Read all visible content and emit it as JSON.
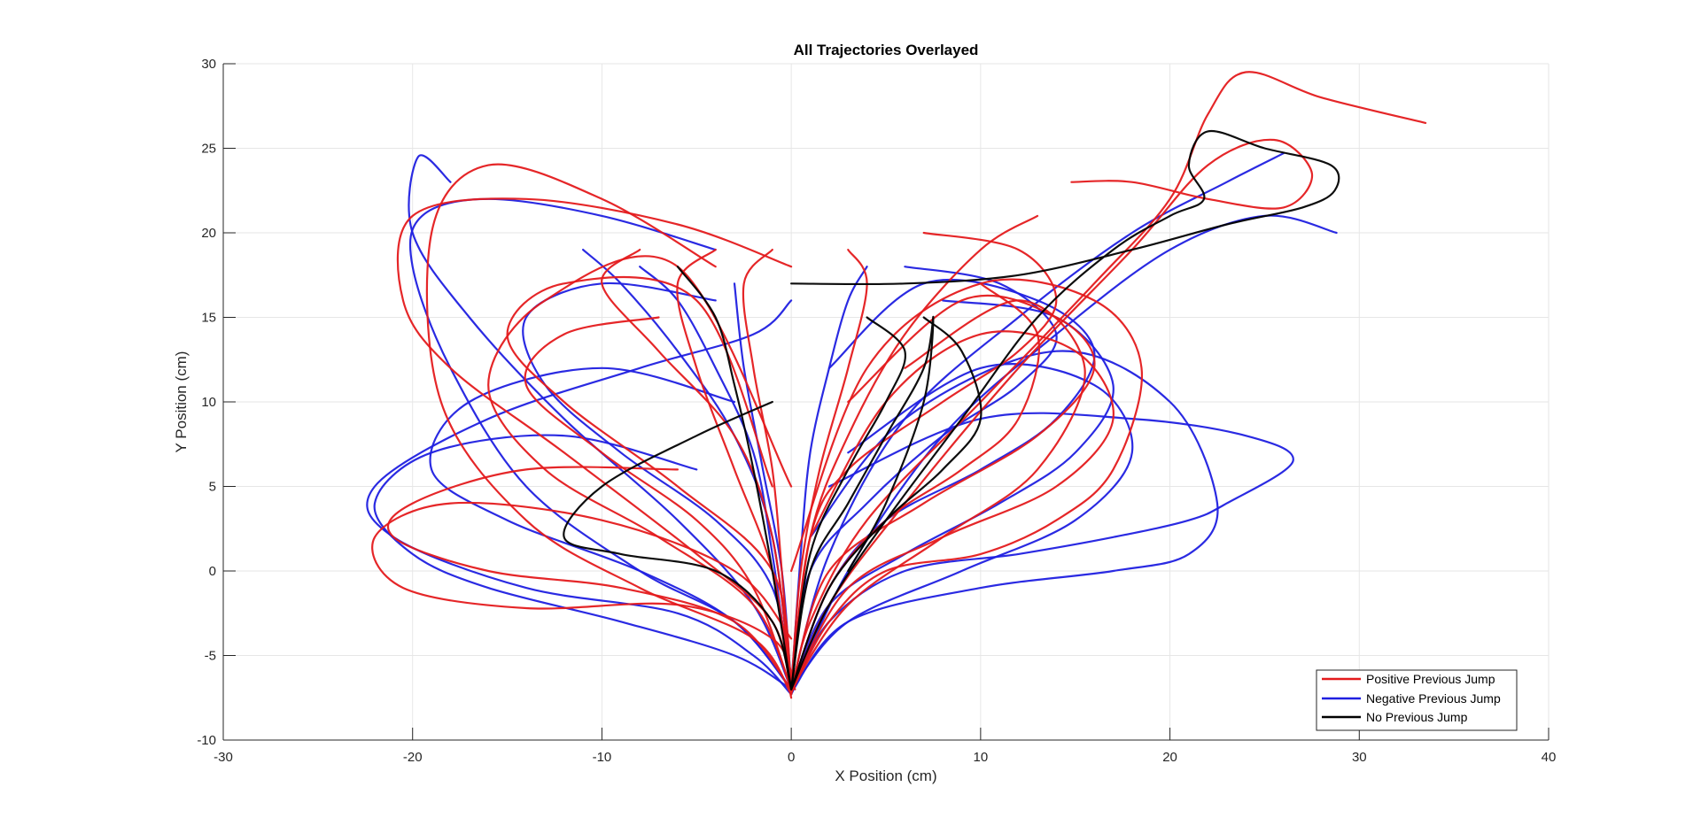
{
  "chart_data": {
    "type": "line",
    "title": "All Trajectories Overlayed",
    "xlabel": "X Position (cm)",
    "ylabel": "Y Position (cm)",
    "xlim": [
      -30,
      40
    ],
    "ylim": [
      -10,
      30
    ],
    "xticks": [
      -30,
      -20,
      -10,
      0,
      10,
      20,
      30,
      40
    ],
    "yticks": [
      -10,
      -5,
      0,
      5,
      10,
      15,
      20,
      25,
      30
    ],
    "xtick_labels": [
      "-30",
      "-20",
      "-10",
      "0",
      "10",
      "20",
      "30",
      "40"
    ],
    "ytick_labels": [
      "-10",
      "-5",
      "0",
      "5",
      "10",
      "15",
      "20",
      "25",
      "30"
    ],
    "grid": true,
    "legend_position": "bottom-right",
    "colors": {
      "positive": "#e41a1c",
      "negative": "#1f1fe0",
      "none": "#000000",
      "grid": "#e6e6e6",
      "axis": "#262626"
    },
    "legend": [
      {
        "label": "Positive Previous Jump",
        "color": "#e41a1c"
      },
      {
        "label": "Negative Previous Jump",
        "color": "#1f1fe0"
      },
      {
        "label": "No Previous Jump",
        "color": "#000000"
      }
    ],
    "series": [
      {
        "name": "Positive Previous Jump",
        "color": "#e41a1c",
        "trajectories": [
          {
            "x": [
              0,
              1,
              4,
              10,
              16,
              20,
              22,
              24,
              28,
              33.5
            ],
            "y": [
              -7.3,
              -3,
              3,
              10,
              17,
              22,
              27,
              29.5,
              28,
              26.5
            ]
          },
          {
            "x": [
              0,
              2,
              6,
              12,
              18,
              22,
              25.5,
              27.5,
              26,
              22,
              18,
              14.8
            ],
            "y": [
              -7.2,
              -2,
              4,
              12,
              19,
              24,
              25.5,
              23.5,
              21.5,
              22,
              23,
              23
            ]
          },
          {
            "x": [
              0,
              -1,
              -5,
              -12,
              -18,
              -20.5,
              -20,
              -14,
              -6,
              0
            ],
            "y": [
              -7.5,
              -3,
              1,
              7,
              12,
              16,
              21,
              22,
              20.5,
              18
            ]
          },
          {
            "x": [
              0,
              -2,
              -8,
              -14,
              -18.5,
              -19,
              -16,
              -10,
              -4
            ],
            "y": [
              -7.3,
              -4,
              -1,
              3,
              10,
              20,
              24,
              22,
              18
            ]
          },
          {
            "x": [
              0.2,
              -1,
              -6,
              -14,
              -20.5,
              -22,
              -18,
              -10,
              -3,
              0
            ],
            "y": [
              -7,
              -4,
              -2,
              -2.2,
              -1,
              2,
              4,
              3,
              0,
              -4
            ]
          },
          {
            "x": [
              0,
              2,
              5,
              10,
              14,
              17,
              18.5,
              16,
              10,
              4,
              0
            ],
            "y": [
              -7.2,
              -3,
              0,
              1,
              3,
              6,
              12,
              16,
              17,
              12,
              0
            ]
          },
          {
            "x": [
              0,
              3,
              8,
              14,
              17,
              15,
              10,
              5,
              1
            ],
            "y": [
              -7,
              -1,
              2,
              5,
              9,
              13,
              14,
              10,
              2
            ]
          },
          {
            "x": [
              0,
              2,
              7,
              13,
              16,
              14,
              9,
              3
            ],
            "y": [
              -7,
              0,
              4,
              8,
              12,
              15,
              16,
              10
            ]
          },
          {
            "x": [
              0,
              -2,
              -7,
              -13,
              -16,
              -13,
              -6,
              0
            ],
            "y": [
              -7,
              -2,
              2,
              6,
              11,
              16,
              18,
              5
            ]
          },
          {
            "x": [
              0,
              -1,
              -6,
              -12,
              -15,
              -12,
              -5,
              -1
            ],
            "y": [
              -7,
              0,
              5,
              10,
              14,
              17,
              16,
              5
            ]
          },
          {
            "x": [
              0,
              1,
              3,
              8,
              12,
              14,
              12,
              7
            ],
            "y": [
              -7,
              2,
              6,
              10,
              13,
              16,
              19,
              20
            ]
          },
          {
            "x": [
              0,
              -1,
              -3,
              -5,
              -6,
              -4
            ],
            "y": [
              -7,
              0,
              6,
              12,
              17,
              19
            ]
          },
          {
            "x": [
              0,
              0.5,
              1.5,
              3,
              4,
              3
            ],
            "y": [
              -7,
              0,
              6,
              12,
              17,
              19
            ]
          },
          {
            "x": [
              0,
              -0.5,
              -1,
              -2,
              -2.5,
              -1
            ],
            "y": [
              -7,
              0,
              6,
              12,
              17,
              19
            ]
          },
          {
            "x": [
              0,
              1,
              3,
              6,
              10,
              13
            ],
            "y": [
              -7,
              2,
              8,
              14,
              19,
              21
            ]
          },
          {
            "x": [
              0,
              -1,
              -3,
              -7,
              -10,
              -8
            ],
            "y": [
              -7,
              2,
              8,
              13,
              17,
              19
            ]
          },
          {
            "x": [
              0,
              -3,
              -9,
              -16,
              -21,
              -20,
              -14,
              -6
            ],
            "y": [
              -7,
              -3,
              -1,
              0,
              2,
              4,
              6,
              6
            ]
          },
          {
            "x": [
              0,
              3,
              8,
              13,
              15.5,
              12,
              6
            ],
            "y": [
              -7,
              -2,
              2,
              6,
              12,
              16,
              12
            ]
          },
          {
            "x": [
              0,
              2,
              5,
              9,
              12,
              13,
              10
            ],
            "y": [
              -7,
              -1,
              3,
              6,
              9,
              14,
              17
            ]
          },
          {
            "x": [
              0,
              -2,
              -5,
              -10,
              -14,
              -12,
              -7
            ],
            "y": [
              -7,
              -1,
              3,
              7,
              11,
              14,
              15
            ]
          }
        ]
      },
      {
        "name": "Negative Previous Jump",
        "color": "#1f1fe0",
        "trajectories": [
          {
            "x": [
              0,
              -2,
              -6,
              -14,
              -21,
              -22,
              -16,
              -8,
              -2,
              0
            ],
            "y": [
              -7.3,
              -5,
              -2.5,
              -1,
              2,
              5,
              9,
              12,
              14,
              16
            ]
          },
          {
            "x": [
              0,
              2,
              6,
              12,
              17,
              21,
              23,
              26.5,
              24,
              18,
              10,
              2
            ],
            "y": [
              -7.3,
              -3,
              0,
              1,
              2,
              3,
              4,
              6.5,
              8,
              9,
              9,
              5
            ]
          },
          {
            "x": [
              0,
              3,
              10,
              17,
              21,
              22.5,
              20,
              14,
              6,
              1
            ],
            "y": [
              -7.2,
              -3,
              -1,
              0,
              1,
              4,
              10,
              13,
              9,
              2
            ]
          },
          {
            "x": [
              0,
              3,
              8,
              14,
              20,
              25,
              28.8
            ],
            "y": [
              -7.2,
              0,
              8,
              14,
              19,
              21,
              20
            ]
          },
          {
            "x": [
              0,
              2,
              6,
              12,
              18,
              23,
              26
            ],
            "y": [
              -7,
              1,
              9,
              15,
              20,
              23,
              24.7
            ]
          },
          {
            "x": [
              0,
              -3,
              -8,
              -14,
              -18,
              -20,
              -19.5,
              -16,
              -10,
              -4
            ],
            "y": [
              -7,
              -3,
              0,
              5,
              12,
              18,
              21,
              22,
              21,
              19
            ]
          },
          {
            "x": [
              0,
              -2,
              -6,
              -12,
              -17,
              -20,
              -19.7,
              -18
            ],
            "y": [
              -7,
              -2,
              3,
              9,
              15,
              20,
              24.5,
              23
            ]
          },
          {
            "x": [
              0,
              -3,
              -9,
              -16,
              -20,
              -22,
              -19,
              -12,
              -5
            ],
            "y": [
              -7,
              -5,
              -3,
              -1,
              1,
              4,
              7,
              8,
              6
            ]
          },
          {
            "x": [
              0,
              2,
              5,
              10,
              14,
              16,
              13,
              7,
              2
            ],
            "y": [
              -7,
              -1,
              3,
              6,
              9,
              13,
              16,
              17,
              12
            ]
          },
          {
            "x": [
              0,
              -1,
              -4,
              -9,
              -13,
              -14,
              -10,
              -4
            ],
            "y": [
              -7,
              -1,
              3,
              7,
              11,
              15,
              17,
              16
            ]
          },
          {
            "x": [
              0,
              1,
              4,
              8,
              12,
              14,
              11,
              6
            ],
            "y": [
              -7,
              0,
              4,
              8,
              11,
              14,
              17,
              18
            ]
          },
          {
            "x": [
              0,
              -1,
              -2,
              -4,
              -6,
              -8
            ],
            "y": [
              -7,
              1,
              7,
              12,
              16,
              18
            ]
          },
          {
            "x": [
              0,
              0.5,
              1,
              2,
              3,
              4
            ],
            "y": [
              -7,
              1,
              7,
              12,
              16,
              18
            ]
          },
          {
            "x": [
              0,
              -0.5,
              -1.5,
              -2.5,
              -3
            ],
            "y": [
              -7,
              0,
              6,
              12,
              17
            ]
          },
          {
            "x": [
              0,
              2,
              6,
              11,
              15,
              17,
              14,
              8
            ],
            "y": [
              -7,
              -2,
              1,
              4,
              7,
              11,
              15,
              16
            ]
          },
          {
            "x": [
              0,
              -3,
              -8,
              -15,
              -19,
              -17,
              -10,
              -3
            ],
            "y": [
              -7,
              -3,
              0,
              3,
              6,
              10,
              12,
              10
            ]
          },
          {
            "x": [
              0,
              3,
              9,
              15,
              18,
              16,
              10,
              3
            ],
            "y": [
              -7,
              -3,
              0,
              3,
              7,
              11,
              12,
              7
            ]
          },
          {
            "x": [
              0,
              -1,
              -3,
              -6,
              -9,
              -11
            ],
            "y": [
              -7,
              2,
              8,
              13,
              17,
              19
            ]
          }
        ]
      },
      {
        "name": "No Previous Jump",
        "color": "#000000",
        "trajectories": [
          {
            "x": [
              0,
              2,
              5,
              9,
              13,
              17,
              20,
              21.8,
              21,
              22,
              25,
              28.5,
              28.7,
              27,
              23,
              18,
              12,
              6,
              0
            ],
            "y": [
              -7,
              -2,
              3,
              9,
              15,
              19,
              21,
              22,
              24,
              26,
              25,
              24,
              22.5,
              21.5,
              20.5,
              19,
              17.5,
              17,
              17
            ]
          },
          {
            "x": [
              0,
              1,
              3,
              5,
              7,
              7.5,
              7,
              5,
              3
            ],
            "y": [
              -7,
              0,
              4,
              8,
              12,
              15,
              10,
              4,
              0
            ]
          },
          {
            "x": [
              0,
              -1,
              -4,
              -9,
              -12,
              -10,
              -5,
              -1
            ],
            "y": [
              -7,
              -3,
              0,
              1,
              2,
              5,
              8,
              10
            ]
          },
          {
            "x": [
              0,
              -1,
              -2,
              -3,
              -4,
              -6
            ],
            "y": [
              -7,
              0,
              6,
              11,
              15,
              18
            ]
          },
          {
            "x": [
              0,
              1,
              3,
              5,
              6,
              4
            ],
            "y": [
              -7,
              1,
              6,
              10,
              13,
              15
            ]
          },
          {
            "x": [
              0,
              2,
              5,
              8,
              10,
              9,
              7
            ],
            "y": [
              -7,
              -1,
              3,
              6,
              9,
              13,
              15
            ]
          }
        ]
      }
    ]
  }
}
